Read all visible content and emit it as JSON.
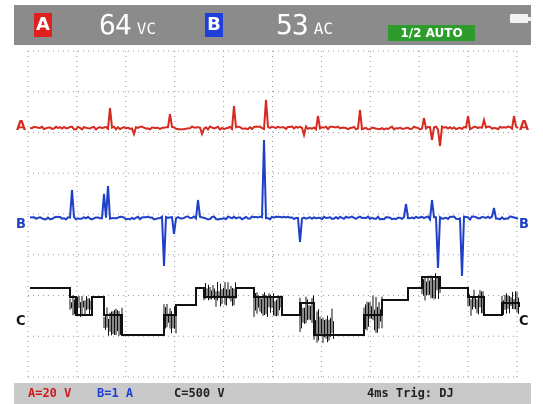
{
  "header": {
    "channel_a_badge": "A",
    "channel_a_value": "64",
    "channel_a_unit": "VC",
    "channel_b_badge": "B",
    "channel_b_value": "53",
    "channel_b_unit": "AC",
    "mode": "1/2 AUTO",
    "battery_icon": "battery-icon"
  },
  "traces": {
    "a_label": "A",
    "b_label": "B",
    "c_label": "C",
    "a_color": "#d42a1f",
    "b_color": "#1e3fc7",
    "c_color": "#111111"
  },
  "status": {
    "a_scale": "A=20 V",
    "b_scale": "B=1 A",
    "c_scale": "C=500 V",
    "timebase_trigger": "4ms Trig: DJ"
  },
  "colors": {
    "top_bar": "#8b8b8b",
    "bottom_bar": "#c9c9c9",
    "channel_a": "#e01f1f",
    "channel_b": "#1f3fd8",
    "auto_badge": "#2d9c2d"
  }
}
